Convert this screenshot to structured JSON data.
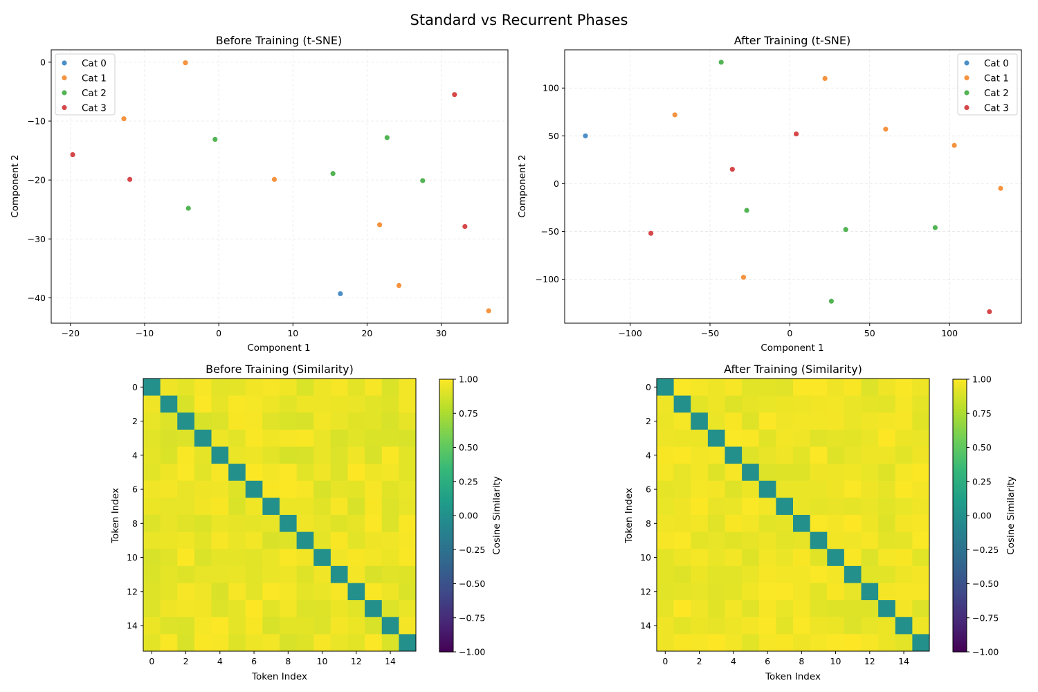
{
  "figure": {
    "suptitle": "Standard vs Recurrent Phases"
  },
  "colors": {
    "cat0": "#4b8fc6",
    "cat1": "#f5933f",
    "cat2": "#53b453",
    "cat3": "#d6474a",
    "diagonal": "#21908d",
    "colormap": "viridis"
  },
  "chart_data": [
    {
      "type": "scatter",
      "title": "Before Training (t-SNE)",
      "xlabel": "Component 1",
      "ylabel": "Component 2",
      "xlim": [
        -22.6,
        39.0
      ],
      "ylim": [
        -44.3,
        2.1
      ],
      "xticks": [
        -20,
        -10,
        0,
        10,
        20,
        30
      ],
      "yticks": [
        0,
        -10,
        -20,
        -30,
        -40
      ],
      "grid": true,
      "legend": "top-left",
      "series": [
        {
          "name": "Cat 0",
          "color_key": "cat0",
          "points": [
            [
              16.4,
              -39.3
            ]
          ]
        },
        {
          "name": "Cat 1",
          "color_key": "cat1",
          "points": [
            [
              -4.5,
              -0.1
            ],
            [
              -12.8,
              -9.6
            ],
            [
              7.5,
              -19.9
            ],
            [
              21.7,
              -27.6
            ],
            [
              24.3,
              -37.9
            ],
            [
              36.4,
              -42.2
            ]
          ]
        },
        {
          "name": "Cat 2",
          "color_key": "cat2",
          "points": [
            [
              -0.5,
              -13.1
            ],
            [
              22.7,
              -12.8
            ],
            [
              15.4,
              -18.9
            ],
            [
              27.5,
              -20.1
            ],
            [
              -4.1,
              -24.8
            ]
          ]
        },
        {
          "name": "Cat 3",
          "color_key": "cat3",
          "points": [
            [
              31.8,
              -5.5
            ],
            [
              -19.7,
              -15.7
            ],
            [
              -12.0,
              -19.9
            ],
            [
              33.2,
              -27.9
            ]
          ]
        }
      ]
    },
    {
      "type": "scatter",
      "title": "After Training (t-SNE)",
      "xlabel": "Component 1",
      "ylabel": "Component 2",
      "xlim": [
        -141,
        145
      ],
      "ylim": [
        -146,
        140
      ],
      "xticks": [
        -100,
        -50,
        0,
        50,
        100
      ],
      "yticks": [
        100,
        50,
        0,
        -50,
        -100
      ],
      "grid": true,
      "legend": "top-right",
      "series": [
        {
          "name": "Cat 0",
          "color_key": "cat0",
          "points": [
            [
              -128,
              50
            ]
          ]
        },
        {
          "name": "Cat 1",
          "color_key": "cat1",
          "points": [
            [
              22,
              110
            ],
            [
              -72,
              72
            ],
            [
              60,
              57
            ],
            [
              103,
              40
            ],
            [
              132,
              -5
            ],
            [
              -29,
              -98
            ]
          ]
        },
        {
          "name": "Cat 2",
          "color_key": "cat2",
          "points": [
            [
              -43,
              127
            ],
            [
              -27,
              -28
            ],
            [
              35,
              -48
            ],
            [
              91,
              -46
            ],
            [
              26,
              -123
            ]
          ]
        },
        {
          "name": "Cat 3",
          "color_key": "cat3",
          "points": [
            [
              4,
              52
            ],
            [
              -36,
              15
            ],
            [
              -87,
              -52
            ],
            [
              125,
              -134
            ]
          ]
        }
      ]
    },
    {
      "type": "heatmap",
      "title": "Before Training (Similarity)",
      "xlabel": "Token Index",
      "ylabel": "Token Index",
      "size": 16,
      "xticks": [
        0,
        2,
        4,
        6,
        8,
        10,
        12,
        14
      ],
      "yticks": [
        0,
        2,
        4,
        6,
        8,
        10,
        12,
        14
      ],
      "diagonal_value": 0.0,
      "offdiag_range": [
        0.88,
        1.0
      ],
      "seed": 11,
      "colorbar": {
        "label": "Cosine Similarity",
        "range": [
          -1.0,
          1.0
        ],
        "ticks": [
          "1.00",
          "0.75",
          "0.50",
          "0.25",
          "0.00",
          "−0.25",
          "−0.50",
          "−0.75",
          "−1.00"
        ]
      }
    },
    {
      "type": "heatmap",
      "title": "After Training (Similarity)",
      "xlabel": "Token Index",
      "ylabel": "Token Index",
      "size": 16,
      "xticks": [
        0,
        2,
        4,
        6,
        8,
        10,
        12,
        14
      ],
      "yticks": [
        0,
        2,
        4,
        6,
        8,
        10,
        12,
        14
      ],
      "diagonal_value": 0.0,
      "offdiag_range": [
        0.9,
        1.0
      ],
      "seed": 29,
      "colorbar": {
        "label": "Cosine Similarity",
        "range": [
          -1.0,
          1.0
        ],
        "ticks": [
          "1.00",
          "0.75",
          "0.50",
          "0.25",
          "0.00",
          "−0.25",
          "−0.50",
          "−0.75",
          "−1.00"
        ]
      }
    }
  ]
}
